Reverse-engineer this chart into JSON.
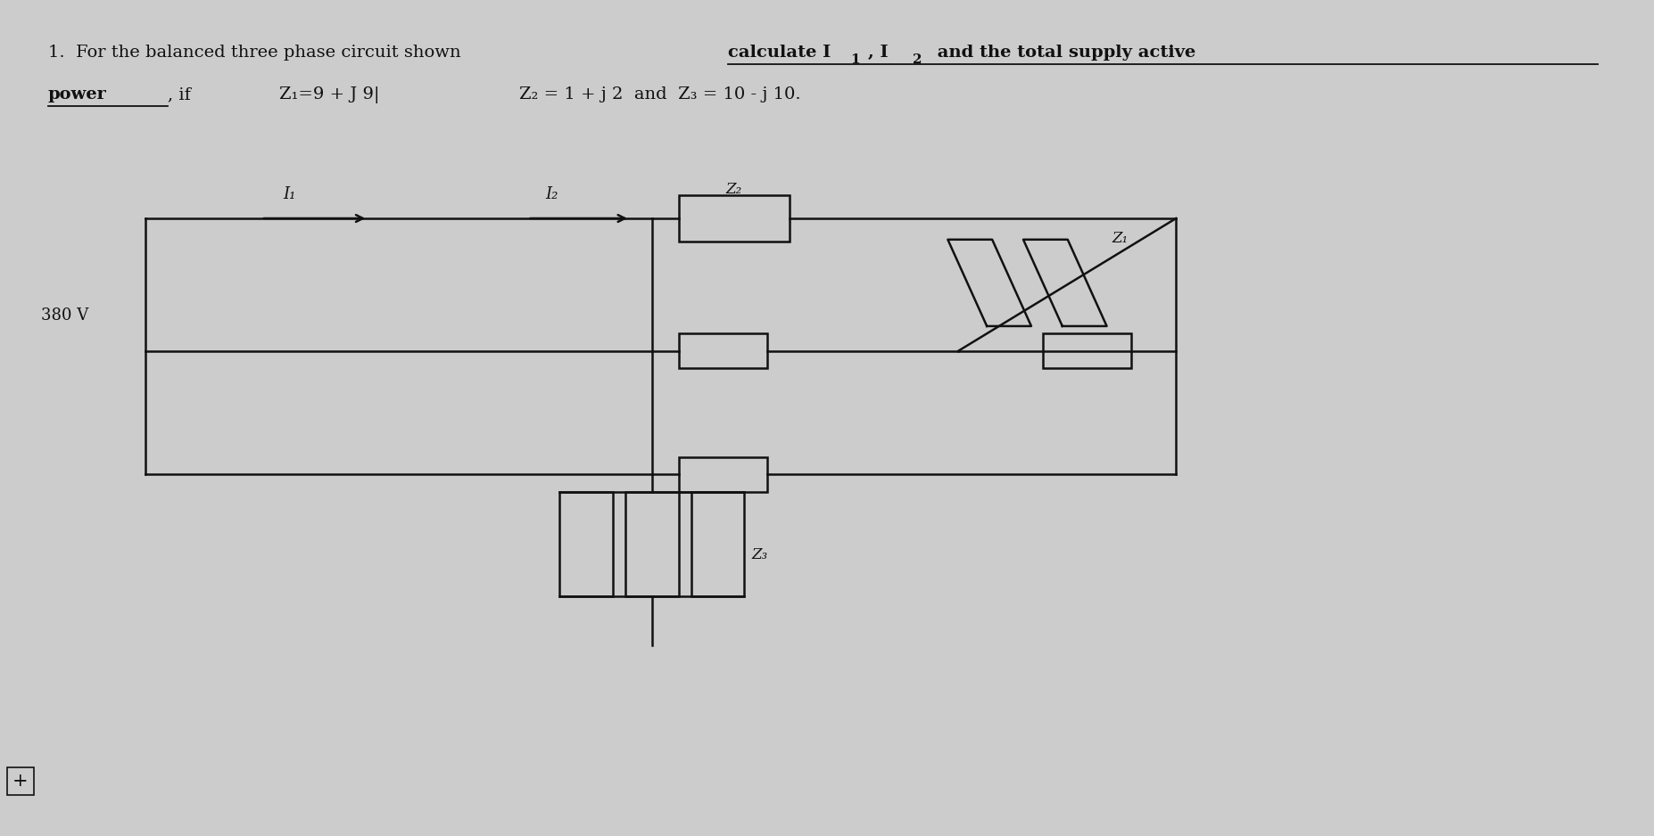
{
  "bg": "#cccccc",
  "lc": "#111111",
  "tc": "#111111",
  "voltage": "380 V",
  "I1": "I₁",
  "I2": "I₂",
  "Z1_comp": "Z₁",
  "Z2_comp": "Z₂",
  "Z3_comp": "Z₃",
  "header1_plain": "1.  For the balanced three phase circuit shown ",
  "header1_bold": "calculate I",
  "header1_sub1": "1",
  "header1_bold2": ", I",
  "header1_sub2": "2",
  "header1_bold3": " and the total supply active",
  "header2_bold": "power",
  "header2_plain": ", if",
  "z1_val": "Z₁=9 + J 9|",
  "z2_val": "Z₂ = 1 + j 2  and  Z₃ = 10 - j 10.",
  "plus_sym": "+"
}
